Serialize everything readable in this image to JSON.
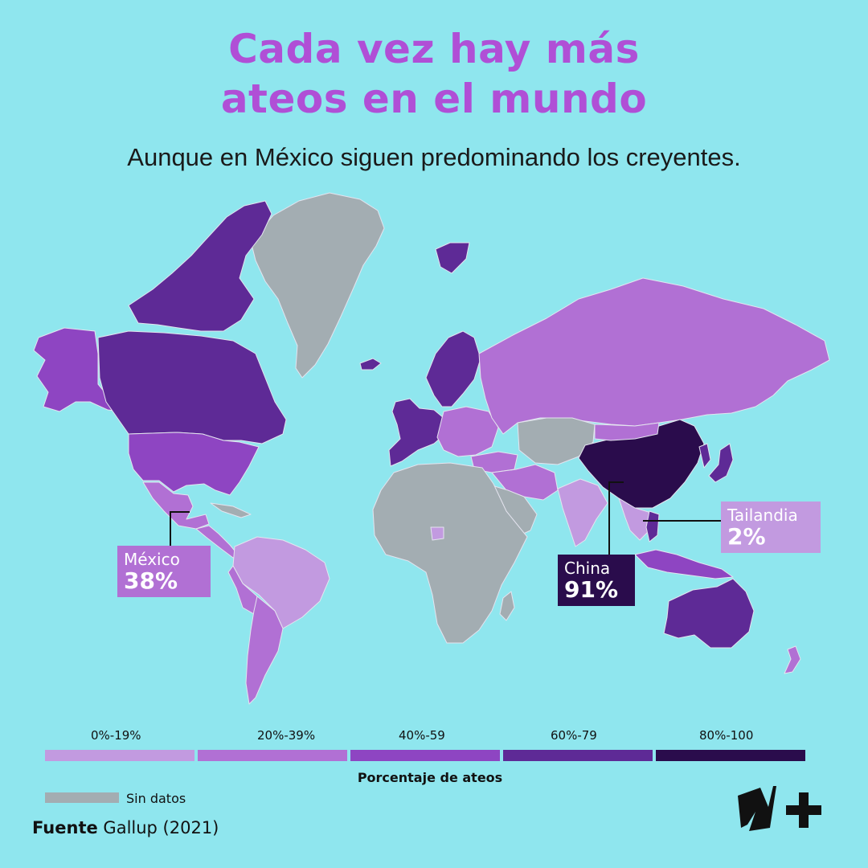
{
  "title_line1": "Cada vez hay más",
  "title_line2": "ateos en el mundo",
  "subtitle": "Aunque en México siguen predominando los creyentes.",
  "callouts": {
    "mexico": {
      "name": "México",
      "value": "38%"
    },
    "china": {
      "name": "China",
      "value": "91%"
    },
    "tailandia": {
      "name": "Tailandia",
      "value": "2%"
    }
  },
  "legend": {
    "title": "Porcentaje de ateos",
    "bins": [
      {
        "label": "0%-19%",
        "color": "#c29ae0"
      },
      {
        "label": "20%-39%",
        "color": "#b170d4"
      },
      {
        "label": "40%-59",
        "color": "#8e45c2"
      },
      {
        "label": "60%-79",
        "color": "#5e2a96"
      },
      {
        "label": "80%-100",
        "color": "#2a0c4c"
      }
    ],
    "no_data": {
      "label": "Sin datos",
      "color": "#a3adb2"
    }
  },
  "source": {
    "label": "Fuente",
    "text": "Gallup (2021)"
  },
  "colors": {
    "background": "#8fe6ee",
    "title": "#b04fd6",
    "border": "#e8e8f0"
  }
}
